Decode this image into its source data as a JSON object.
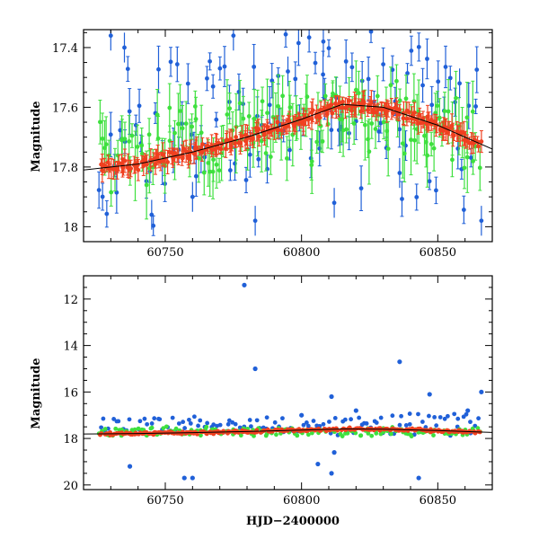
{
  "chart_data": [
    {
      "type": "scatter",
      "panel": "top",
      "xlabel": "",
      "ylabel": "Magnitude",
      "xlim": [
        60720,
        60870
      ],
      "ylim": [
        18.05,
        17.34
      ],
      "y_inverted": true,
      "x_ticks": [
        60750,
        60800,
        60850
      ],
      "x_tick_labels": [
        "60750",
        "60800",
        "60850"
      ],
      "y_ticks": [
        17.4,
        17.6,
        17.8,
        18.0
      ],
      "y_tick_labels": [
        "17.4",
        "17.6",
        "17.8",
        "18"
      ],
      "series": [
        {
          "color": "#2060d8",
          "style": "points-with-errorbars",
          "seed": 3,
          "level": 17.62,
          "spread": 0.22,
          "err": 0.04,
          "count": 110
        },
        {
          "color": "#3ee03e",
          "style": "points-with-errorbars",
          "seed": 7,
          "level": 17.7,
          "spread": 0.1,
          "err": 0.06,
          "count": 150
        },
        {
          "color": "#f04020",
          "style": "points-with-errorbars",
          "seed": 11,
          "level": 0,
          "spread": 0.015,
          "err": 0.02,
          "count": 260
        }
      ],
      "trend": {
        "x": [
          60720,
          60740,
          60760,
          60780,
          60800,
          60815,
          60830,
          60850,
          60870
        ],
        "y": [
          17.81,
          17.79,
          17.75,
          17.7,
          17.64,
          17.59,
          17.6,
          17.66,
          17.74
        ]
      },
      "outliers": {
        "x": [
          60730,
          60735,
          60745,
          60760,
          60775,
          60783,
          60795,
          60808,
          60812,
          60836,
          60858,
          60866
        ],
        "y": [
          17.36,
          17.4,
          17.96,
          17.9,
          17.36,
          17.98,
          17.48,
          17.38,
          17.92,
          17.82,
          17.52,
          17.98
        ]
      },
      "grid": false
    },
    {
      "type": "scatter",
      "panel": "bottom",
      "xlabel": "HJD−2400000",
      "ylabel": "Magnitude",
      "xlim": [
        60720,
        60870
      ],
      "ylim": [
        20.2,
        11.0
      ],
      "y_inverted": true,
      "x_ticks": [
        60750,
        60800,
        60850
      ],
      "x_tick_labels": [
        "60750",
        "60800",
        "60850"
      ],
      "y_ticks": [
        12,
        14,
        16,
        18,
        20
      ],
      "y_tick_labels": [
        "12",
        "14",
        "16",
        "18",
        "20"
      ],
      "series": [
        {
          "color": "#2060d8",
          "style": "points",
          "seed": 5,
          "level": 17.4,
          "spread": 0.35,
          "count": 120
        },
        {
          "color": "#3ee03e",
          "style": "points",
          "seed": 9,
          "level": 17.7,
          "spread": 0.15,
          "count": 150
        },
        {
          "color": "#f04020",
          "style": "points",
          "seed": 13,
          "level": 0,
          "spread": 0.05,
          "count": 260
        }
      ],
      "blue_highlights": {
        "x": [
          60779,
          60783,
          60811,
          60811,
          60836,
          60760,
          60737,
          60806,
          60812,
          60843,
          60847,
          60866,
          60861,
          60820,
          60800,
          60757
        ],
        "y": [
          11.4,
          15.0,
          16.2,
          19.5,
          14.7,
          19.7,
          19.2,
          19.1,
          18.6,
          19.7,
          16.1,
          16.0,
          16.8,
          16.8,
          17.0,
          19.7
        ]
      },
      "grid": false
    }
  ]
}
